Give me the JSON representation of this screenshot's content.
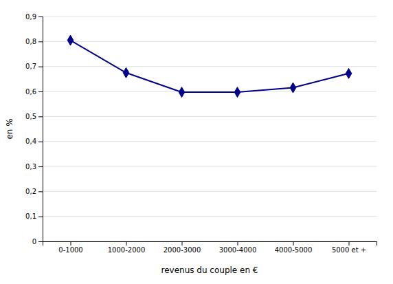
{
  "chart_data": {
    "type": "line",
    "categories": [
      "0-1000",
      "1000-2000",
      "2000-3000",
      "3000-4000",
      "4000-5000",
      "5000 et +"
    ],
    "values": [
      0.805,
      0.675,
      0.597,
      0.597,
      0.615,
      0.672
    ],
    "color": "#00008B",
    "marker": "diamond",
    "xlabel": "revenus du couple en €",
    "ylabel": "en %",
    "ylim": [
      0,
      0.9
    ],
    "yticks": [
      0,
      {
        "value": 0.1,
        "label": "0,1"
      },
      {
        "value": 0.2,
        "label": "0,2"
      },
      {
        "value": 0.3,
        "label": "0,3"
      },
      {
        "value": 0.4,
        "label": "0,4"
      },
      {
        "value": 0.5,
        "label": "0,5"
      },
      {
        "value": 0.6,
        "label": "0,6"
      },
      {
        "value": 0.7,
        "label": "0,7"
      },
      {
        "value": 0.8,
        "label": "0,8"
      },
      {
        "value": 0.9,
        "label": "0,9"
      }
    ],
    "grid": true
  }
}
